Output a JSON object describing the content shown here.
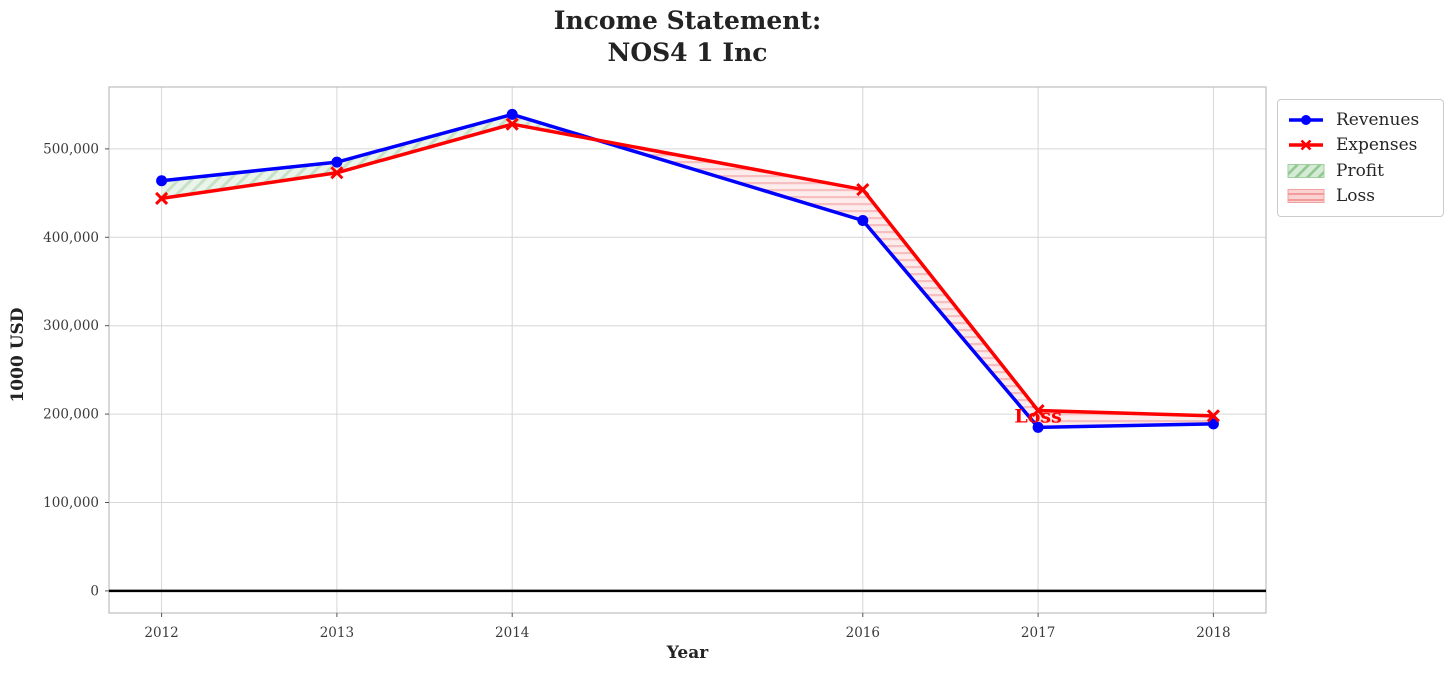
{
  "figure": {
    "title": "Income Statement:\nNOS4 1 Inc",
    "xlabel": "Year",
    "ylabel": "1000 USD"
  },
  "legend": {
    "position": "outside-right-top",
    "items": [
      {
        "label": "Revenues",
        "swatch": "blue-line-circle-marker"
      },
      {
        "label": "Expenses",
        "swatch": "red-line-x-marker"
      },
      {
        "label": "Profit",
        "swatch": "green-diagonal-hatch-patch"
      },
      {
        "label": "Loss",
        "swatch": "red-horizontal-hatch-patch"
      }
    ]
  },
  "chart_data": {
    "type": "line",
    "title": "Income Statement:\nNOS4 1 Inc",
    "xlabel": "Year",
    "ylabel": "1000 USD",
    "x": [
      2012,
      2013,
      2014,
      2016,
      2017,
      2018
    ],
    "series": [
      {
        "name": "Revenues",
        "color": "#0000ff",
        "marker": "circle",
        "values": [
          464000,
          485000,
          539000,
          419000,
          185000,
          189000
        ]
      },
      {
        "name": "Expenses",
        "color": "#ff0000",
        "marker": "x",
        "values": [
          444000,
          473000,
          528000,
          454000,
          204000,
          198000
        ]
      }
    ],
    "fills": [
      {
        "name": "Profit",
        "condition": "revenues > expenses",
        "style": "light-green diagonal hatch"
      },
      {
        "name": "Loss",
        "condition": "expenses > revenues",
        "style": "light-red horizontal hatch"
      }
    ],
    "annotation": {
      "text": "Loss",
      "x": 2017,
      "y": 197000,
      "color": "#ff0000"
    },
    "xticks": [
      {
        "value": 2012,
        "label": "2012"
      },
      {
        "value": 2013,
        "label": "2013"
      },
      {
        "value": 2014,
        "label": "2014"
      },
      {
        "value": 2016,
        "label": "2016"
      },
      {
        "value": 2017,
        "label": "2017"
      },
      {
        "value": 2018,
        "label": "2018"
      }
    ],
    "yticks": [
      {
        "value": 0,
        "label": "0"
      },
      {
        "value": 100000,
        "label": "100,000"
      },
      {
        "value": 200000,
        "label": "200,000"
      },
      {
        "value": 300000,
        "label": "300,000"
      },
      {
        "value": 400000,
        "label": "400,000"
      },
      {
        "value": 500000,
        "label": "500,000"
      }
    ],
    "xlim": [
      2011.7,
      2018.3
    ],
    "ylim": [
      -25000,
      570000
    ],
    "grid": true,
    "zero_line": true,
    "legend_position": "outside-right-top"
  },
  "style": {
    "grid_color": "#d6d6d6",
    "spine_color": "#bdbdbd",
    "zero_line_color": "#000000",
    "profit_fill_bg": "#eaf4ea",
    "profit_fill_stripe": "#c6e1c6",
    "loss_fill_bg": "#fdecec",
    "loss_fill_stripe": "#f7bfbf",
    "legend_profit_bg": "#d5ebd5",
    "legend_profit_stripe": "#90c890",
    "legend_loss_bg": "#fbd2d2",
    "legend_loss_stripe": "#f19b9b"
  }
}
